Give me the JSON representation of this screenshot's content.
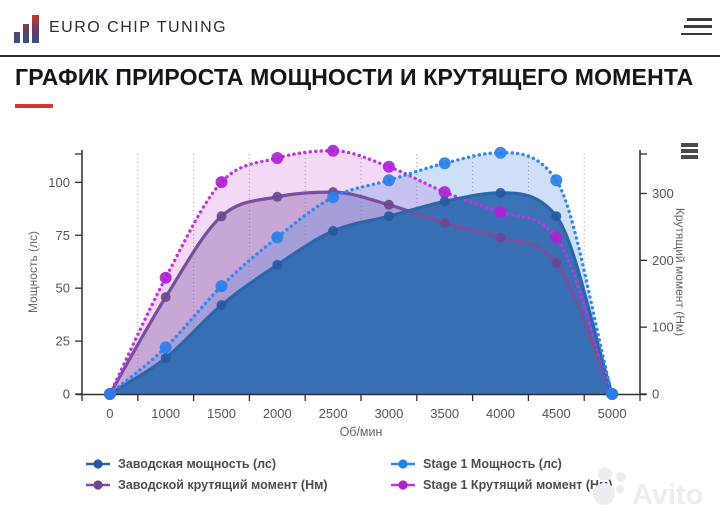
{
  "header": {
    "brand": "EURO CHIP TUNING",
    "menu_icon": "hamburger-icon"
  },
  "page_title": {
    "text": "ГРАФИК ПРИРОСТА МОЩНОСТИ И КРУТЯЩЕГО МОМЕНТА"
  },
  "colors": {
    "accent_red": "#cf3a30",
    "axis": "#2f2f2f",
    "grid": "#9a9a9a",
    "tick_label": "#565656",
    "axis_title": "#666666",
    "watermark": "#ecedf2"
  },
  "chart_data": {
    "type": "line",
    "categories": [
      "0",
      "1000",
      "1500",
      "2000",
      "2500",
      "3000",
      "3500",
      "4000",
      "4500",
      "5000"
    ],
    "xlabel": "Об/мин",
    "y_left": {
      "label": "Мощность (лс)",
      "ticks": [
        0,
        25,
        50,
        75,
        100
      ],
      "max": 120
    },
    "y_right": {
      "label": "Крутящий момент (Нм)",
      "ticks": [
        0,
        100,
        200,
        300
      ],
      "max": 380
    },
    "grid": "vertical-dotted",
    "legend_position": "bottom",
    "series": [
      {
        "id": "stock-power",
        "name": "Заводская мощность (лс)",
        "axis": "left",
        "line": "solid",
        "color": "#2b65ab",
        "marker_color": "#27599e",
        "fill": "rgba(50,108,177,0.95)",
        "values": [
          0,
          17,
          42,
          61,
          77,
          84,
          91,
          95,
          84,
          0
        ]
      },
      {
        "id": "stage1-power",
        "name": "Stage 1 Мощность (лс)",
        "axis": "left",
        "line": "dotted",
        "color": "#3187f2",
        "marker_color": "#2b7fe8",
        "fill": "rgba(80,140,225,0.28)",
        "values": [
          0,
          22,
          51,
          74,
          93,
          101,
          109,
          114,
          101,
          0
        ]
      },
      {
        "id": "stock-torque",
        "name": "Заводской крутящий момент (Нм)",
        "axis": "right",
        "line": "solid",
        "color": "#774f9c",
        "marker_color": "#6d4691",
        "fill": "rgba(130,85,160,0.38)",
        "values": [
          0,
          145,
          266,
          295,
          302,
          283,
          256,
          234,
          196,
          0
        ]
      },
      {
        "id": "stage1-torque",
        "name": "Stage 1 Крутящий момент (Нм)",
        "axis": "right",
        "line": "dotted",
        "color": "#bd37dc",
        "marker_color": "#ac23d4",
        "fill": "rgba(205,80,215,0.22)",
        "values": [
          0,
          174,
          317,
          353,
          364,
          340,
          302,
          272,
          234,
          0
        ]
      }
    ]
  },
  "watermark": {
    "text": "Avito"
  }
}
